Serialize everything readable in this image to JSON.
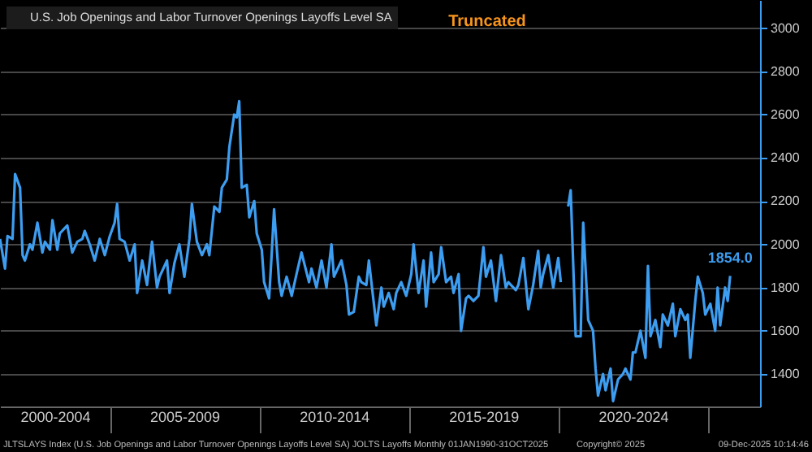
{
  "chart_data": {
    "type": "line",
    "x": [
      "2001-05",
      "2001-07",
      "2001-08",
      "2001-10",
      "2001-11",
      "2002-01",
      "2002-02",
      "2002-03",
      "2002-05",
      "2002-06",
      "2002-08",
      "2002-10",
      "2002-11",
      "2003-01",
      "2003-02",
      "2003-04",
      "2003-05",
      "2003-07",
      "2003-08",
      "2003-10",
      "2003-12",
      "2004-02",
      "2004-03",
      "2004-05",
      "2004-07",
      "2004-09",
      "2004-11",
      "2005-01",
      "2005-03",
      "2005-04",
      "2005-05",
      "2005-07",
      "2005-09",
      "2005-11",
      "2005-12",
      "2006-02",
      "2006-04",
      "2006-06",
      "2006-08",
      "2006-09",
      "2006-12",
      "2007-01",
      "2007-03",
      "2007-05",
      "2007-07",
      "2007-09",
      "2007-10",
      "2007-12",
      "2008-02",
      "2008-04",
      "2008-05",
      "2008-07",
      "2008-09",
      "2008-10",
      "2008-12",
      "2009-01",
      "2009-03",
      "2009-04",
      "2009-05",
      "2009-06",
      "2009-08",
      "2009-09",
      "2009-11",
      "2009-12",
      "2010-02",
      "2010-03",
      "2010-05",
      "2010-06",
      "2010-07",
      "2010-09",
      "2010-10",
      "2010-12",
      "2011-02",
      "2011-04",
      "2011-06",
      "2011-09",
      "2011-10",
      "2011-12",
      "2012-02",
      "2012-04",
      "2012-06",
      "2012-07",
      "2012-10",
      "2012-12",
      "2013-01",
      "2013-03",
      "2013-05",
      "2013-06",
      "2013-08",
      "2013-09",
      "2013-11",
      "2013-12",
      "2014-02",
      "2014-03",
      "2014-05",
      "2014-07",
      "2014-08",
      "2014-10",
      "2014-12",
      "2015-02",
      "2015-03",
      "2015-05",
      "2015-07",
      "2015-08",
      "2015-10",
      "2015-11",
      "2016-01",
      "2016-02",
      "2016-04",
      "2016-06",
      "2016-07",
      "2016-09",
      "2016-10",
      "2016-12",
      "2017-01",
      "2017-03",
      "2017-05",
      "2017-07",
      "2017-08",
      "2017-10",
      "2017-12",
      "2018-02",
      "2018-04",
      "2018-05",
      "2018-08",
      "2018-09",
      "2018-11",
      "2019-01",
      "2019-03",
      "2019-05",
      "2019-06",
      "2019-07",
      "2019-09",
      "2019-11",
      "2020-01",
      "2020-02",
      "2020-03",
      "2020-04",
      "2020-05",
      "2020-06",
      "2020-08",
      "2020-10",
      "2020-11",
      "2021-01",
      "2021-03",
      "2021-04",
      "2021-05",
      "2021-07",
      "2021-08",
      "2021-10",
      "2021-11",
      "2022-01",
      "2022-03",
      "2022-04",
      "2022-06",
      "2022-07",
      "2022-08",
      "2022-10",
      "2022-12",
      "2023-01",
      "2023-02",
      "2023-04",
      "2023-06",
      "2023-07",
      "2023-09",
      "2023-11",
      "2023-12",
      "2024-02",
      "2024-04",
      "2024-05",
      "2024-06",
      "2024-08",
      "2024-09",
      "2024-11",
      "2024-12",
      "2025-02",
      "2025-04",
      "2025-05",
      "2025-06",
      "2025-08",
      "2025-09",
      "2025-10"
    ],
    "series": [
      {
        "name": "U.S. Job Openings and Labor Turnover Openings Layoffs Level SA",
        "color": "#3d9df0",
        "values": [
          2025,
          1888,
          2038,
          2025,
          2325,
          2262,
          1950,
          1925,
          2000,
          1975,
          2100,
          1962,
          2012,
          1975,
          2112,
          1975,
          2050,
          2075,
          2087,
          1962,
          2012,
          2025,
          2062,
          2000,
          1925,
          2025,
          1950,
          2038,
          2100,
          2187,
          2025,
          2012,
          1925,
          2000,
          1775,
          1925,
          1812,
          2012,
          1800,
          1850,
          1925,
          1775,
          1912,
          2000,
          1850,
          2025,
          2187,
          2012,
          1950,
          2000,
          1950,
          2175,
          2150,
          2262,
          2300,
          2450,
          2600,
          2587,
          2662,
          2262,
          2275,
          2125,
          2200,
          2050,
          1975,
          1825,
          1750,
          1950,
          2162,
          1825,
          1762,
          1850,
          1762,
          1862,
          1962,
          1825,
          1888,
          1800,
          1925,
          1800,
          2000,
          1850,
          1925,
          1812,
          1675,
          1688,
          1850,
          1825,
          1812,
          1925,
          1725,
          1625,
          1800,
          1712,
          1775,
          1700,
          1775,
          1825,
          1762,
          1862,
          2000,
          1775,
          1925,
          1712,
          1962,
          1825,
          1862,
          1987,
          1825,
          1850,
          1775,
          1862,
          1600,
          1750,
          1762,
          1738,
          1762,
          1987,
          1850,
          1925,
          1738,
          1950,
          1800,
          1825,
          1788,
          1812,
          1937,
          1700,
          1812,
          1970,
          1800,
          1862,
          1950,
          1800,
          1937,
          1825,
          null,
          null,
          2175,
          2250,
          1575,
          1575,
          2100,
          1650,
          1600,
          1425,
          1300,
          1400,
          1325,
          1425,
          1275,
          1375,
          1400,
          1425,
          1375,
          1500,
          1500,
          1600,
          1475,
          1900,
          1575,
          1650,
          1525,
          1675,
          1625,
          1725,
          1575,
          1700,
          1650,
          1675,
          1475,
          1738,
          1850,
          1775,
          1675,
          1725,
          1600,
          1800,
          1625,
          1800,
          1738,
          1854
        ]
      }
    ],
    "xlim": [
      "2001-05",
      "2026-10"
    ],
    "ylim": [
      1250,
      3130
    ],
    "xticks": [
      {
        "value": "2003-03",
        "label": "2000-2004"
      },
      {
        "value": "2005",
        "label": null
      },
      {
        "value": "2007-07",
        "label": "2005-2009"
      },
      {
        "value": "2010",
        "label": null
      },
      {
        "value": "2012-07",
        "label": "2010-2014"
      },
      {
        "value": "2015",
        "label": null
      },
      {
        "value": "2017-07",
        "label": "2015-2019"
      },
      {
        "value": "2020",
        "label": null
      },
      {
        "value": "2022-07",
        "label": "2020-2024"
      },
      {
        "value": "2025",
        "label": null
      }
    ],
    "yticks": [
      1400,
      1600,
      1800,
      2000,
      2200,
      2400,
      2600,
      2800,
      3000
    ],
    "grid": "y",
    "legend": "top left",
    "annotations": [
      "Truncated",
      {
        "text": "1854.0",
        "x": "2025-10",
        "y": 1854
      },
      "JLTSLAYS Index (U.S. Job Openings and Labor Turnover Openings Layoffs Level SA) JOLTS Layoffs Monthly 01JAN1990-31OCT2025",
      "Copyright© 2025",
      "09-Dec-2025 10:14:46"
    ]
  }
}
